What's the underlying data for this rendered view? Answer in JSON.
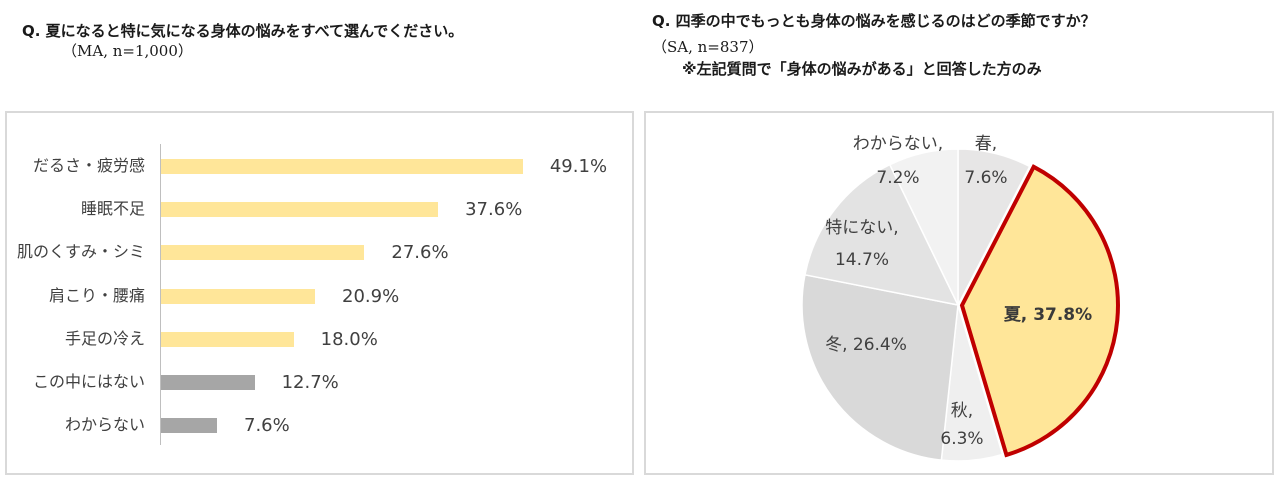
{
  "left": {
    "question": "Q. 夏になると特に気になる身体の悩みをすべて選んでください。",
    "subtitle": "（MA, n=1,000）"
  },
  "right": {
    "question": "Q. 四季の中でもっとも身体の悩みを感じるのはどの季節ですか？",
    "subtitle": "（SA, n=837）",
    "note": "※左記質問で「身体の悩みがある」と回答した方のみ"
  },
  "colors": {
    "highlight_bar": "#ffe699",
    "other_bar": "#a6a6a6",
    "summer_fill": "#ffe699",
    "summer_border": "#c00000",
    "pie_grays": [
      "#e7e6e6",
      "#efefef",
      "#d9d9d9",
      "#e3e3e3",
      "#f2f2f2"
    ]
  },
  "chart_data": [
    {
      "type": "bar",
      "orientation": "horizontal",
      "title": "Q. 夏になると特に気になる身体の悩みをすべて選んでください。（MA, n=1,000）",
      "categories": [
        "だるさ・疲労感",
        "睡眠不足",
        "肌のくすみ・シミ",
        "肩こり・腰痛",
        "手足の冷え",
        "この中にはない",
        "わからない"
      ],
      "values": [
        49.1,
        37.6,
        27.6,
        20.9,
        18.0,
        12.7,
        7.6
      ],
      "value_labels": [
        "49.1%",
        "37.6%",
        "27.6%",
        "20.9%",
        "18.0%",
        "12.7%",
        "7.6%"
      ],
      "bar_colors": [
        "#ffe699",
        "#ffe699",
        "#ffe699",
        "#ffe699",
        "#ffe699",
        "#a6a6a6",
        "#a6a6a6"
      ],
      "xlabel": "",
      "ylabel": "",
      "xlim": [
        0,
        60
      ],
      "grid": false,
      "legend": null
    },
    {
      "type": "pie",
      "title": "Q. 四季の中でもっとも身体の悩みを感じるのはどの季節ですか？（SA, n=837）※左記質問で「身体の悩みがある」と回答した方のみ",
      "labels": [
        "春",
        "夏",
        "秋",
        "冬",
        "特にない",
        "わからない"
      ],
      "values": [
        7.6,
        37.8,
        6.3,
        26.4,
        14.7,
        7.2
      ],
      "value_labels": [
        "春, 7.6%",
        "夏, 37.8%",
        "秋, 6.3%",
        "冬, 26.4%",
        "特にない, 14.7%",
        "わからない, 7.2%"
      ],
      "highlighted": "夏",
      "start_angle": "12 o'clock",
      "direction": "clockwise",
      "legend": null
    }
  ]
}
